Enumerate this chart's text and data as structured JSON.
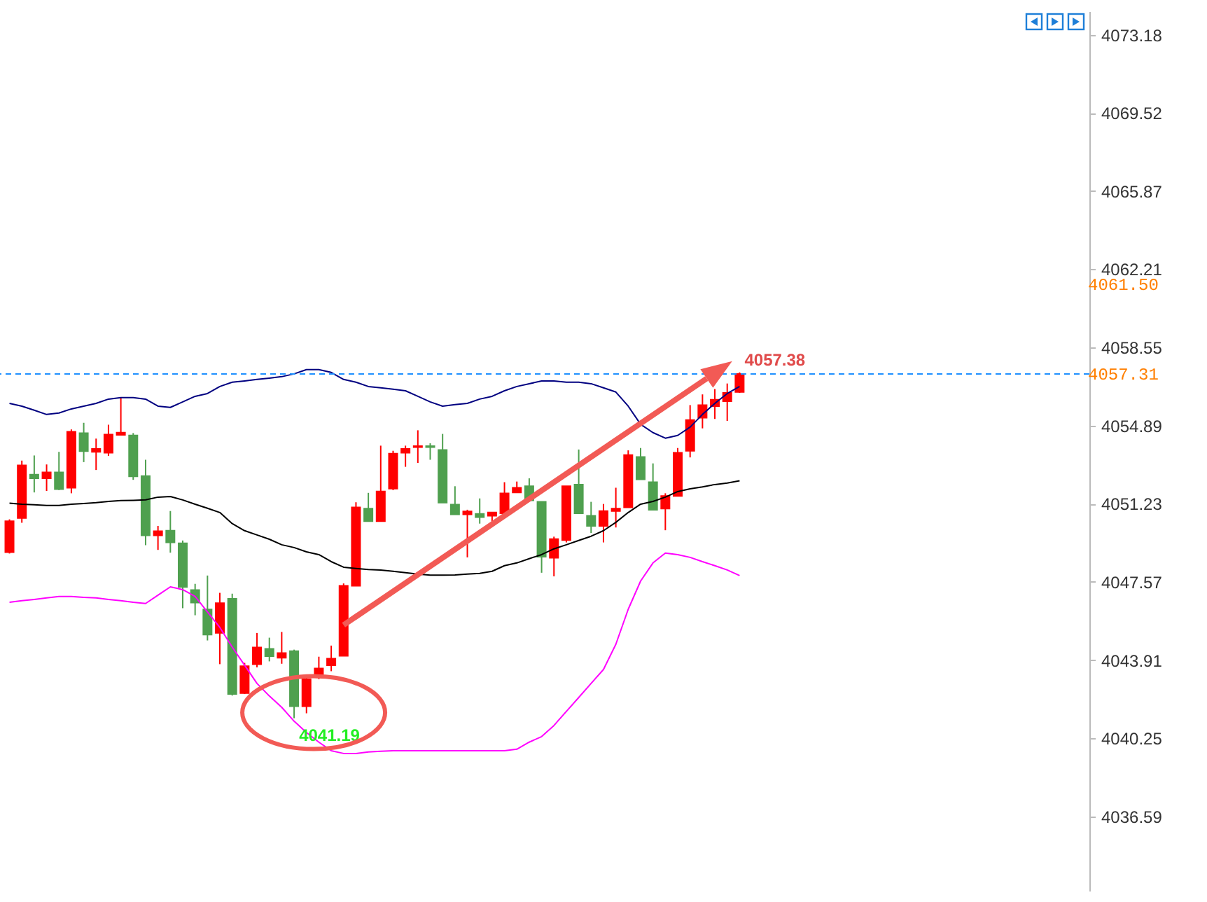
{
  "chart_data": {
    "type": "candlestick",
    "categories": [
      null,
      null,
      null,
      null,
      null,
      null,
      null,
      null,
      null,
      null,
      null,
      null,
      null,
      null,
      null,
      null,
      null,
      null,
      null,
      null,
      null,
      null,
      null,
      null,
      null,
      null,
      null,
      null,
      null,
      null,
      null,
      null,
      null,
      null,
      null,
      null,
      null,
      null,
      null,
      null,
      null,
      null,
      null,
      null,
      null,
      null,
      null,
      null,
      null,
      null,
      null,
      null,
      null,
      null,
      null,
      null,
      null,
      null,
      null,
      null
    ],
    "ohlc": [
      [
        4048.96,
        4050.5,
        4048.9,
        4050.41
      ],
      [
        4050.56,
        4053.25,
        4050.34,
        4053.03
      ],
      [
        4052.59,
        4053.49,
        4051.76,
        4052.42
      ],
      [
        4052.42,
        4053.07,
        4051.83,
        4052.7
      ],
      [
        4052.7,
        4053.66,
        4051.87,
        4051.91
      ],
      [
        4051.98,
        4054.71,
        4051.72,
        4054.6
      ],
      [
        4054.54,
        4055.02,
        4053.18,
        4053.69
      ],
      [
        4053.66,
        4054.28,
        4052.81,
        4053.8
      ],
      [
        4053.62,
        4054.93,
        4053.47,
        4054.47
      ],
      [
        4054.45,
        4056.2,
        4054.45,
        4054.56
      ],
      [
        4054.43,
        4054.54,
        4052.35,
        4052.51
      ],
      [
        4052.53,
        4053.29,
        4049.29,
        4049.75
      ],
      [
        4049.75,
        4050.19,
        4049.07,
        4049.95
      ],
      [
        4049.97,
        4050.89,
        4048.94,
        4049.42
      ],
      [
        4049.38,
        4049.51,
        4046.34,
        4047.33
      ],
      [
        4047.19,
        4047.48,
        4046.01,
        4046.6
      ],
      [
        4046.28,
        4047.87,
        4044.83,
        4045.1
      ],
      [
        4045.18,
        4047.06,
        4043.72,
        4046.58
      ],
      [
        4046.78,
        4047.02,
        4042.25,
        4042.32
      ],
      [
        4042.36,
        4043.78,
        4042.32,
        4043.63
      ],
      [
        4043.72,
        4045.18,
        4043.57,
        4044.5
      ],
      [
        4044.44,
        4044.96,
        4043.85,
        4044.09
      ],
      [
        4044.02,
        4045.23,
        4043.74,
        4044.24
      ],
      [
        4044.33,
        4044.4,
        4041.19,
        4041.75
      ],
      [
        4041.75,
        4043.19,
        4041.42,
        4043.02
      ],
      [
        4043.24,
        4044.07,
        4043.02,
        4043.52
      ],
      [
        4043.67,
        4044.59,
        4043.39,
        4043.98
      ],
      [
        4044.11,
        4047.5,
        4044.11,
        4047.39
      ],
      [
        4047.39,
        4051.3,
        4047.39,
        4051.06
      ],
      [
        4051.0,
        4051.74,
        4050.41,
        4050.41
      ],
      [
        4050.41,
        4053.95,
        4050.41,
        4051.81
      ],
      [
        4051.94,
        4053.71,
        4051.87,
        4053.58
      ],
      [
        4053.62,
        4053.95,
        4052.96,
        4053.8
      ],
      [
        4053.88,
        4054.67,
        4053.14,
        4053.93
      ],
      [
        4053.93,
        4054.06,
        4053.29,
        4053.88
      ],
      [
        4053.75,
        4054.5,
        4051.28,
        4051.28
      ],
      [
        4051.19,
        4052.05,
        4050.73,
        4050.73
      ],
      [
        4050.73,
        4050.95,
        4048.72,
        4050.87
      ],
      [
        4050.76,
        4051.48,
        4050.3,
        4050.6
      ],
      [
        4050.67,
        4050.82,
        4050.3,
        4050.82
      ],
      [
        4050.78,
        4052.24,
        4050.78,
        4051.72
      ],
      [
        4051.76,
        4052.27,
        4051.76,
        4051.98
      ],
      [
        4052.05,
        4052.42,
        4051.39,
        4051.39
      ],
      [
        4051.32,
        4051.32,
        4048.0,
        4048.75
      ],
      [
        4048.7,
        4049.69,
        4047.83,
        4049.58
      ],
      [
        4049.53,
        4052.05,
        4049.42,
        4052.05
      ],
      [
        4052.13,
        4053.77,
        4050.78,
        4050.78
      ],
      [
        4050.67,
        4051.32,
        4049.86,
        4050.19
      ],
      [
        4050.19,
        4051.22,
        4049.42,
        4050.89
      ],
      [
        4050.89,
        4051.98,
        4050.12,
        4051.0
      ],
      [
        4051.06,
        4053.73,
        4051.06,
        4053.51
      ],
      [
        4053.42,
        4053.84,
        4052.37,
        4052.37
      ],
      [
        4052.24,
        4053.12,
        4050.95,
        4050.95
      ],
      [
        4051.0,
        4051.72,
        4049.99,
        4051.59
      ],
      [
        4051.59,
        4053.84,
        4051.59,
        4053.62
      ],
      [
        4053.71,
        4055.85,
        4053.4,
        4055.15
      ],
      [
        4055.26,
        4056.35,
        4054.76,
        4055.85
      ],
      [
        4055.8,
        4056.6,
        4055.2,
        4056.1
      ],
      [
        4056.03,
        4056.86,
        4055.11,
        4056.42
      ],
      [
        4056.46,
        4057.38,
        4056.42,
        4057.31
      ]
    ],
    "colors": [
      "#ff0000",
      "#ff0000",
      "#4fa04f",
      "#ff0000",
      "#4fa04f",
      "#ff0000",
      "#4fa04f",
      "#ff0000",
      "#ff0000",
      "#ff0000",
      "#4fa04f",
      "#4fa04f",
      "#ff0000",
      "#4fa04f",
      "#4fa04f",
      "#4fa04f",
      "#4fa04f",
      "#ff0000",
      "#4fa04f",
      "#ff0000",
      "#ff0000",
      "#4fa04f",
      "#ff0000",
      "#4fa04f",
      "#ff0000",
      "#ff0000",
      "#ff0000",
      "#ff0000",
      "#ff0000",
      "#4fa04f",
      "#ff0000",
      "#ff0000",
      "#ff0000",
      "#ff0000",
      "#4fa04f",
      "#4fa04f",
      "#4fa04f",
      "#ff0000",
      "#4fa04f",
      "#ff0000",
      "#ff0000",
      "#ff0000",
      "#4fa04f",
      "#4fa04f",
      "#ff0000",
      "#ff0000",
      "#4fa04f",
      "#4fa04f",
      "#ff0000",
      "#ff0000",
      "#ff0000",
      "#4fa04f",
      "#4fa04f",
      "#ff0000",
      "#ff0000",
      "#ff0000",
      "#ff0000",
      "#ff0000",
      "#ff0000",
      "#ff0000"
    ],
    "series": [
      {
        "type": "line",
        "color": "#000080",
        "values": [
          4055.93,
          4055.8,
          4055.61,
          4055.41,
          4055.48,
          4055.67,
          4055.8,
          4055.93,
          4056.13,
          4056.2,
          4056.2,
          4056.13,
          4055.8,
          4055.74,
          4056.0,
          4056.26,
          4056.39,
          4056.72,
          4056.92,
          4056.98,
          4057.05,
          4057.11,
          4057.18,
          4057.31,
          4057.51,
          4057.51,
          4057.38,
          4057.05,
          4056.92,
          4056.72,
          4056.66,
          4056.59,
          4056.52,
          4056.26,
          4056.0,
          4055.8,
          4055.87,
          4055.93,
          4056.13,
          4056.26,
          4056.52,
          4056.72,
          4056.85,
          4056.98,
          4056.98,
          4056.92,
          4056.92,
          4056.85,
          4056.66,
          4056.46,
          4055.8,
          4054.95,
          4054.56,
          4054.3,
          4054.43,
          4054.82,
          4055.41,
          4055.93,
          4056.39,
          4056.72
        ]
      },
      {
        "type": "line",
        "color": "#000000",
        "values": [
          4051.26,
          4051.21,
          4051.18,
          4051.15,
          4051.15,
          4051.21,
          4051.24,
          4051.28,
          4051.34,
          4051.38,
          4051.39,
          4051.41,
          4051.54,
          4051.57,
          4051.41,
          4051.21,
          4051.02,
          4050.82,
          4050.3,
          4049.97,
          4049.77,
          4049.57,
          4049.31,
          4049.18,
          4048.98,
          4048.85,
          4048.52,
          4048.26,
          4048.2,
          4048.15,
          4048.13,
          4048.07,
          4048.0,
          4047.94,
          4047.89,
          4047.89,
          4047.9,
          4047.94,
          4047.97,
          4048.07,
          4048.33,
          4048.46,
          4048.66,
          4048.85,
          4049.12,
          4049.31,
          4049.51,
          4049.71,
          4049.97,
          4050.36,
          4050.82,
          4051.21,
          4051.34,
          4051.54,
          4051.8,
          4051.93,
          4052.02,
          4052.13,
          4052.2,
          4052.31
        ]
      },
      {
        "type": "line",
        "color": "#ff00ff",
        "values": [
          4046.62,
          4046.69,
          4046.75,
          4046.82,
          4046.89,
          4046.89,
          4046.85,
          4046.82,
          4046.75,
          4046.69,
          4046.62,
          4046.56,
          4046.95,
          4047.34,
          4047.21,
          4046.89,
          4046.16,
          4045.44,
          4044.52,
          4043.67,
          4042.82,
          4042.23,
          4041.7,
          4041.05,
          4040.52,
          4040.07,
          4039.67,
          4039.54,
          4039.54,
          4039.61,
          4039.64,
          4039.67,
          4039.67,
          4039.67,
          4039.67,
          4039.67,
          4039.67,
          4039.67,
          4039.67,
          4039.67,
          4039.67,
          4039.74,
          4040.07,
          4040.33,
          4040.85,
          4041.51,
          4042.16,
          4042.82,
          4043.47,
          4044.65,
          4046.29,
          4047.61,
          4048.46,
          4048.92,
          4048.85,
          4048.72,
          4048.52,
          4048.33,
          4048.13,
          4047.87
        ]
      }
    ],
    "ylim": [
      4033.11,
      4074.29
    ],
    "yticks": [
      4036.59,
      4040.25,
      4043.91,
      4047.57,
      4051.23,
      4054.89,
      4058.55,
      4062.21,
      4065.87,
      4069.52,
      4073.18
    ],
    "ref_lines": [
      {
        "axis": "y",
        "value": 4057.31,
        "label": "4057.31",
        "color": "#1e90ff",
        "line_style": "dashed"
      }
    ],
    "annotations": [
      {
        "text": "4057.38",
        "y": 4057.38
      },
      "4041.19",
      "4061.50"
    ]
  }
}
